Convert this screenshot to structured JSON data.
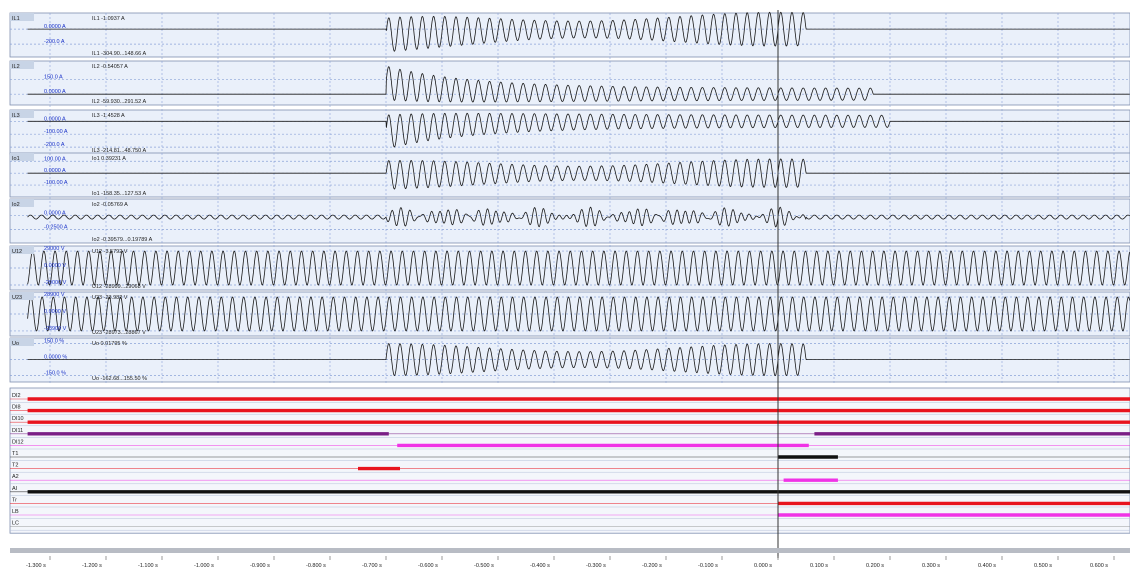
{
  "chart_data": {
    "type": "line",
    "title": "",
    "x_unit": "s",
    "x_range": [
      -1.34,
      0.63
    ],
    "cursor_x": 0.0,
    "grid": true,
    "x_ticks": [
      {
        "value": -1.3,
        "label": "-1.300 s"
      },
      {
        "value": -1.2,
        "label": "-1.200 s"
      },
      {
        "value": -1.1,
        "label": "-1.100 s"
      },
      {
        "value": -1.0,
        "label": "-1.000 s"
      },
      {
        "value": -0.9,
        "label": "-0.900 s"
      },
      {
        "value": -0.8,
        "label": "-0.800 s"
      },
      {
        "value": -0.7,
        "label": "-0.700 s"
      },
      {
        "value": -0.6,
        "label": "-0.600 s"
      },
      {
        "value": -0.5,
        "label": "-0.500 s"
      },
      {
        "value": -0.4,
        "label": "-0.400 s"
      },
      {
        "value": -0.3,
        "label": "-0.300 s"
      },
      {
        "value": -0.2,
        "label": "-0.200 s"
      },
      {
        "value": -0.1,
        "label": "-0.100 s"
      },
      {
        "value": 0.0,
        "label": "0.000 s"
      },
      {
        "value": 0.1,
        "label": "0.100 s"
      },
      {
        "value": 0.2,
        "label": "0.200 s"
      },
      {
        "value": 0.3,
        "label": "0.300 s"
      },
      {
        "value": 0.4,
        "label": "0.400 s"
      },
      {
        "value": 0.5,
        "label": "0.500 s"
      },
      {
        "value": 0.6,
        "label": "0.600 s"
      }
    ],
    "analog_channels": [
      {
        "name": "IL1",
        "value_label": "IL1 -1.0937 A",
        "range_label": "IL1 -304.90...148.66 A",
        "levels": [
          {
            "label": "0.0000 A",
            "value": 0
          },
          {
            "label": "-200.0 A",
            "value": -200
          }
        ],
        "y_range": [
          -304.9,
          148.66
        ],
        "waveform": "fault_transient",
        "amplitude": 226,
        "offset": -78,
        "fault_start": -0.7,
        "fault_end": 0.05,
        "decay": false
      },
      {
        "name": "IL2",
        "value_label": "IL2 -0.54057 A",
        "range_label": "IL2 -59.930...291.52 A",
        "levels": [
          {
            "label": "150.0 A",
            "value": 150
          },
          {
            "label": "0.0000 A",
            "value": 0
          }
        ],
        "y_range": [
          -59.93,
          291.52
        ],
        "waveform": "fault_transient",
        "amplitude": 176,
        "offset": 116,
        "fault_start": -0.7,
        "fault_end": 0.17,
        "decay": true
      },
      {
        "name": "IL3",
        "value_label": "IL3 -1.4528 A",
        "range_label": "IL3 -214.81...48.750 A",
        "levels": [
          {
            "label": "0.0000 A",
            "value": 0
          },
          {
            "label": "-100.00 A",
            "value": -100
          },
          {
            "label": "-200.0 A",
            "value": -200
          }
        ],
        "y_range": [
          -214.81,
          48.75
        ],
        "waveform": "fault_transient",
        "amplitude": 132,
        "offset": -83,
        "fault_start": -0.7,
        "fault_end": 0.2,
        "decay": true
      },
      {
        "name": "Io1",
        "value_label": "Io1 0.39231 A",
        "range_label": "Io1 -158.35...127.53 A",
        "levels": [
          {
            "label": "100.00 A",
            "value": 100
          },
          {
            "label": "0.0000 A",
            "value": 0
          },
          {
            "label": "-100.00 A",
            "value": -100
          }
        ],
        "y_range": [
          -158.35,
          127.53
        ],
        "waveform": "fault_transient",
        "amplitude": 120,
        "offset": -15,
        "fault_start": -0.7,
        "fault_end": 0.05,
        "decay": false
      },
      {
        "name": "Io2",
        "value_label": "Io2 -0.05769 A",
        "range_label": "Io2 -0.39579...0.19789 A",
        "levels": [
          {
            "label": "0.0000 A",
            "value": 0
          },
          {
            "label": "-0.2500 A",
            "value": -0.25
          }
        ],
        "y_range": [
          -0.39579,
          0.19789
        ],
        "waveform": "noise",
        "amplitude": 0.1,
        "offset": -0.03,
        "fault_start": -0.7,
        "fault_end": 0.05,
        "decay": false
      },
      {
        "name": "U12",
        "value_label": "U12 -3.5792 V",
        "range_label": "U12 -28999...29068 V",
        "levels": [
          {
            "label": "29000 V",
            "value": 29000
          },
          {
            "label": "0.0000 V",
            "value": 0
          },
          {
            "label": "-29000 V",
            "value": -29000
          }
        ],
        "y_range": [
          -28999,
          29068
        ],
        "waveform": "sine",
        "amplitude": 29000,
        "offset": 0,
        "fault_start": -1.34,
        "fault_end": 0.63,
        "decay": false
      },
      {
        "name": "U23",
        "value_label": "U23 -23.982 V",
        "range_label": "U23 -28973...28867 V",
        "levels": [
          {
            "label": "28900 V",
            "value": 28900
          },
          {
            "label": "0.0000 V",
            "value": 0
          },
          {
            "label": "-28900 V",
            "value": -28900
          }
        ],
        "y_range": [
          -28973,
          28867
        ],
        "waveform": "sine",
        "amplitude": 28900,
        "offset": 0,
        "fault_start": -1.34,
        "fault_end": 0.63,
        "decay": false
      },
      {
        "name": "Uo",
        "value_label": "Uo 0.01795 %",
        "range_label": "Uo -162.68...155.50 %",
        "levels": [
          {
            "label": "150.0 %",
            "value": 150
          },
          {
            "label": "0.0000 %",
            "value": 0
          },
          {
            "label": "-150.0 %",
            "value": -150
          }
        ],
        "y_range": [
          -162.68,
          155.5
        ],
        "waveform": "fault_transient",
        "amplitude": 150,
        "offset": 0,
        "fault_start": -0.7,
        "fault_end": 0.05,
        "decay": false
      }
    ],
    "digital_channels": [
      {
        "name": "DI2",
        "color": "#e8141e",
        "segments": [
          [
            -1.34,
            0.63
          ]
        ]
      },
      {
        "name": "DI8",
        "color": "#e8141e",
        "segments": [
          [
            -1.34,
            0.63
          ]
        ]
      },
      {
        "name": "DI10",
        "color": "#e8141e",
        "segments": [
          [
            -1.34,
            0.63
          ]
        ]
      },
      {
        "name": "DI11",
        "color": "#7a1f86",
        "segments": [
          [
            -1.34,
            -0.695
          ],
          [
            0.065,
            0.63
          ]
        ]
      },
      {
        "name": "DI12",
        "color": "#f033e6",
        "segments": [
          [
            -0.68,
            0.055
          ]
        ]
      },
      {
        "name": "T1",
        "color": "#111111",
        "segments": [
          [
            0.0,
            0.107
          ]
        ]
      },
      {
        "name": "T2",
        "color": "#e8141e",
        "segments": [
          [
            -0.75,
            -0.675
          ]
        ]
      },
      {
        "name": "A2",
        "color": "#f033e6",
        "segments": [
          [
            0.01,
            0.107
          ]
        ]
      },
      {
        "name": "AI",
        "color": "#111111",
        "segments": [
          [
            -1.34,
            0.63
          ]
        ]
      },
      {
        "name": "Tr",
        "color": "#e8141e",
        "segments": [
          [
            0.0,
            0.63
          ]
        ]
      },
      {
        "name": "LB",
        "color": "#f033e6",
        "segments": [
          [
            0.0,
            0.63
          ]
        ]
      },
      {
        "name": "LC",
        "color": "#999999",
        "segments": []
      }
    ],
    "colors": {
      "panel_bg": "#eaf0fa",
      "channel_name_bg": "#c8d4e6",
      "grid": "#8aa2d8",
      "trace": "#1a1a1a",
      "level_text": "#1830c8",
      "cursor": "#333333"
    }
  }
}
